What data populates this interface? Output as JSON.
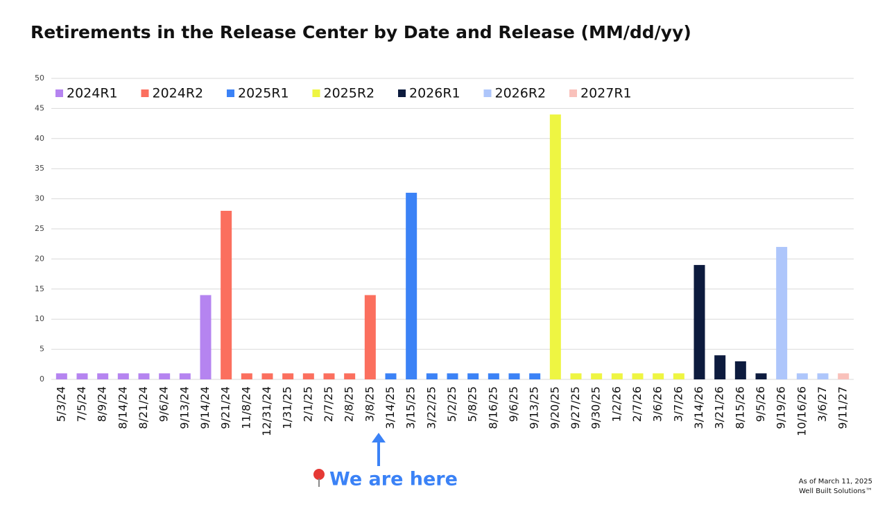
{
  "chart_data": {
    "type": "bar",
    "title": "Retirements in the Release Center by Date and Release (MM/dd/yy)",
    "categories": [
      "5/3/24",
      "7/5/24",
      "8/9/24",
      "8/14/24",
      "8/21/24",
      "9/6/24",
      "9/13/24",
      "9/14/24",
      "9/21/24",
      "11/8/24",
      "12/31/24",
      "1/31/25",
      "2/1/25",
      "2/7/25",
      "2/8/25",
      "3/8/25",
      "3/14/25",
      "3/15/25",
      "3/22/25",
      "5/2/25",
      "5/8/25",
      "8/16/25",
      "9/6/25",
      "9/13/25",
      "9/20/25",
      "9/27/25",
      "9/30/25",
      "1/2/26",
      "2/7/26",
      "3/6/26",
      "3/7/26",
      "3/14/26",
      "3/21/26",
      "8/15/26",
      "9/5/26",
      "9/19/26",
      "10/16/26",
      "3/6/27",
      "9/11/27"
    ],
    "series": [
      {
        "name": "2024R1",
        "color": "#b584f0",
        "values": [
          1,
          1,
          1,
          1,
          1,
          1,
          1,
          14,
          null,
          null,
          null,
          null,
          null,
          null,
          null,
          null,
          null,
          null,
          null,
          null,
          null,
          null,
          null,
          null,
          null,
          null,
          null,
          null,
          null,
          null,
          null,
          null,
          null,
          null,
          null,
          null,
          null,
          null,
          null
        ]
      },
      {
        "name": "2024R2",
        "color": "#fb6f5e",
        "values": [
          null,
          null,
          null,
          null,
          null,
          null,
          null,
          null,
          28,
          1,
          1,
          1,
          1,
          1,
          1,
          14,
          null,
          null,
          null,
          null,
          null,
          null,
          null,
          null,
          null,
          null,
          null,
          null,
          null,
          null,
          null,
          null,
          null,
          null,
          null,
          null,
          null,
          null,
          null
        ]
      },
      {
        "name": "2025R1",
        "color": "#3b82f6",
        "values": [
          null,
          null,
          null,
          null,
          null,
          null,
          null,
          null,
          null,
          null,
          null,
          null,
          null,
          null,
          null,
          null,
          1,
          31,
          1,
          1,
          1,
          1,
          1,
          1,
          null,
          null,
          null,
          null,
          null,
          null,
          null,
          null,
          null,
          null,
          null,
          null,
          null,
          null,
          null
        ]
      },
      {
        "name": "2025R2",
        "color": "#eef542",
        "values": [
          null,
          null,
          null,
          null,
          null,
          null,
          null,
          null,
          null,
          null,
          null,
          null,
          null,
          null,
          null,
          null,
          null,
          null,
          null,
          null,
          null,
          null,
          null,
          null,
          44,
          1,
          1,
          1,
          1,
          1,
          1,
          null,
          null,
          null,
          null,
          null,
          null,
          null,
          null
        ]
      },
      {
        "name": "2026R1",
        "color": "#0d1b3e",
        "values": [
          null,
          null,
          null,
          null,
          null,
          null,
          null,
          null,
          null,
          null,
          null,
          null,
          null,
          null,
          null,
          null,
          null,
          null,
          null,
          null,
          null,
          null,
          null,
          null,
          null,
          null,
          null,
          null,
          null,
          null,
          null,
          19,
          4,
          3,
          1,
          null,
          null,
          null,
          null
        ]
      },
      {
        "name": "2026R2",
        "color": "#aec6fb",
        "values": [
          null,
          null,
          null,
          null,
          null,
          null,
          null,
          null,
          null,
          null,
          null,
          null,
          null,
          null,
          null,
          null,
          null,
          null,
          null,
          null,
          null,
          null,
          null,
          null,
          null,
          null,
          null,
          null,
          null,
          null,
          null,
          null,
          null,
          null,
          null,
          22,
          1,
          1,
          null
        ]
      },
      {
        "name": "2027R1",
        "color": "#f9c1bb",
        "values": [
          null,
          null,
          null,
          null,
          null,
          null,
          null,
          null,
          null,
          null,
          null,
          null,
          null,
          null,
          null,
          null,
          null,
          null,
          null,
          null,
          null,
          null,
          null,
          null,
          null,
          null,
          null,
          null,
          null,
          null,
          null,
          null,
          null,
          null,
          null,
          null,
          null,
          null,
          1
        ]
      }
    ],
    "ylim": [
      0,
      50
    ],
    "yticks": [
      0,
      5,
      10,
      15,
      20,
      25,
      30,
      35,
      40,
      45,
      50
    ],
    "grid": true,
    "legend": "top-left",
    "annotation": "We are here",
    "footnotes": [
      "As of March 11, 2025",
      "Well Built Solutions™"
    ]
  }
}
